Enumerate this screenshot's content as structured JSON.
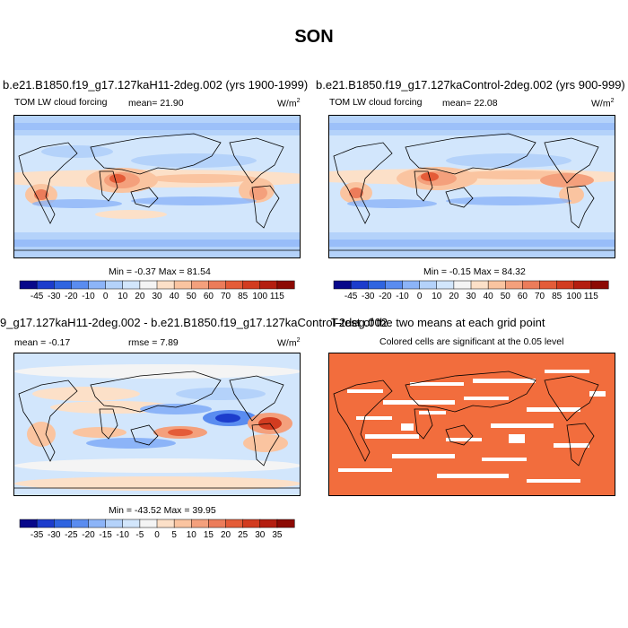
{
  "title": "SON",
  "panels": [
    {
      "title": "b.e21.B1850.f19_g17.127kaH11-2deg.002 (yrs 1900-1999)",
      "variable": "TOM LW cloud forcing",
      "mean_label": "mean=",
      "mean_value": "21.90",
      "units": "W/m",
      "units_sup": "2",
      "minmax": "Min =  -0.37 Max =  81.54"
    },
    {
      "title": "b.e21.B1850.f19_g17.127kaControl-2deg.002 (yrs 900-999)",
      "variable": "TOM LW cloud forcing",
      "mean_label": "mean=",
      "mean_value": "22.08",
      "units": "W/m",
      "units_sup": "2",
      "minmax": "Min =  -0.15 Max =  84.32"
    },
    {
      "title": "9_g17.127kaH11-2deg.002 - b.e21.B1850.f19_g17.127kaControl-2deg.002",
      "mean_label": "mean =",
      "mean_value": "-0.17",
      "rmse_label": "rmse =",
      "rmse_value": "7.89",
      "units": "W/m",
      "units_sup": "2",
      "minmax": "Min = -43.52 Max =  39.95"
    },
    {
      "title": "T-test of the two means at each grid point",
      "subtitle": "Colored cells are significant at the 0.05 level"
    }
  ],
  "colorbars": {
    "absolute": {
      "labels": [
        "-45",
        "-30",
        "-20",
        "-10",
        "0",
        "10",
        "20",
        "30",
        "40",
        "50",
        "60",
        "70",
        "85",
        "100",
        "115"
      ],
      "colors": [
        "#08088a",
        "#1c3ccc",
        "#2f64e0",
        "#5a8cf0",
        "#8cb4f8",
        "#b4d2fa",
        "#d2e6fc",
        "#f4f4f4",
        "#fce0c8",
        "#fac4a0",
        "#f4a07c",
        "#ec7c5a",
        "#e45c38",
        "#d23c20",
        "#b41e10",
        "#8c0a04"
      ]
    },
    "difference": {
      "labels": [
        "-35",
        "-30",
        "-25",
        "-20",
        "-15",
        "-10",
        "-5",
        "0",
        "5",
        "10",
        "15",
        "20",
        "25",
        "30",
        "35"
      ],
      "colors": [
        "#08088a",
        "#1c3ccc",
        "#2f64e0",
        "#5a8cf0",
        "#8cb4f8",
        "#b4d2fa",
        "#d2e6fc",
        "#f4f4f4",
        "#fce0c8",
        "#fac4a0",
        "#f4a07c",
        "#ec7c5a",
        "#e45c38",
        "#d23c20",
        "#b41e10",
        "#8c0a04"
      ]
    }
  },
  "ttest_color": "#f26d3d"
}
